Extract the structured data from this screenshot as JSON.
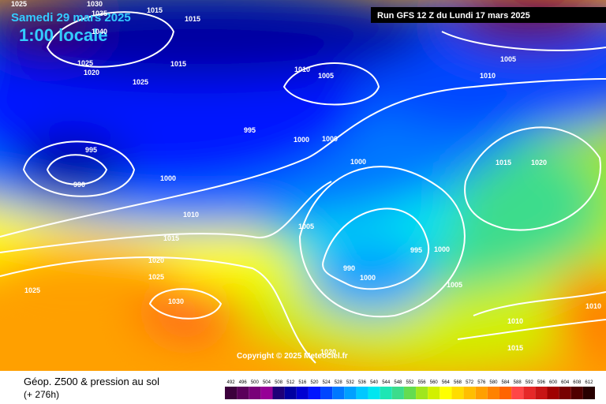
{
  "header": {
    "date": "Samedi 29 mars 2025",
    "time": "1:00 locale",
    "run": "Run GFS 12 Z du Lundi 17 mars 2025"
  },
  "copyright": "Copyright © 2025 Meteociel.fr",
  "footer": {
    "title": "Géop. Z500 & pression au sol",
    "lead": "(+ 276h)"
  },
  "legend": {
    "levels": [
      492,
      496,
      500,
      504,
      508,
      512,
      516,
      520,
      524,
      528,
      532,
      536,
      540,
      544,
      548,
      552,
      556,
      560,
      564,
      568,
      572,
      576,
      580,
      584,
      588,
      592,
      596,
      600,
      604,
      608,
      612
    ],
    "colors": [
      "#3c003c",
      "#5a005a",
      "#780078",
      "#960096",
      "#1e0078",
      "#0000a0",
      "#0000d2",
      "#0014ff",
      "#0046ff",
      "#0078ff",
      "#00a0ff",
      "#00c8ff",
      "#00e6f0",
      "#1ee6b4",
      "#3cdc8c",
      "#64dc50",
      "#a0e61e",
      "#d2f000",
      "#ffff00",
      "#ffdc00",
      "#ffbe00",
      "#ffa000",
      "#ff8200",
      "#ff6400",
      "#ff4646",
      "#e62828",
      "#c81414",
      "#a00000",
      "#780000",
      "#500000",
      "#280000"
    ]
  },
  "isobar_labels": [
    "1025",
    "1030",
    "1035",
    "1040",
    "1015",
    "1015",
    "1025",
    "1020",
    "1025",
    "1015",
    "995",
    "990",
    "1000",
    "1010",
    "1015",
    "1020",
    "1025",
    "1025",
    "1030",
    "1010",
    "1005",
    "995",
    "1000",
    "1000",
    "1000",
    "1005",
    "990",
    "1000",
    "995",
    "1000",
    "1005",
    "1005",
    "1010",
    "1015",
    "1020",
    "1010",
    "1010",
    "1015",
    "1020"
  ]
}
